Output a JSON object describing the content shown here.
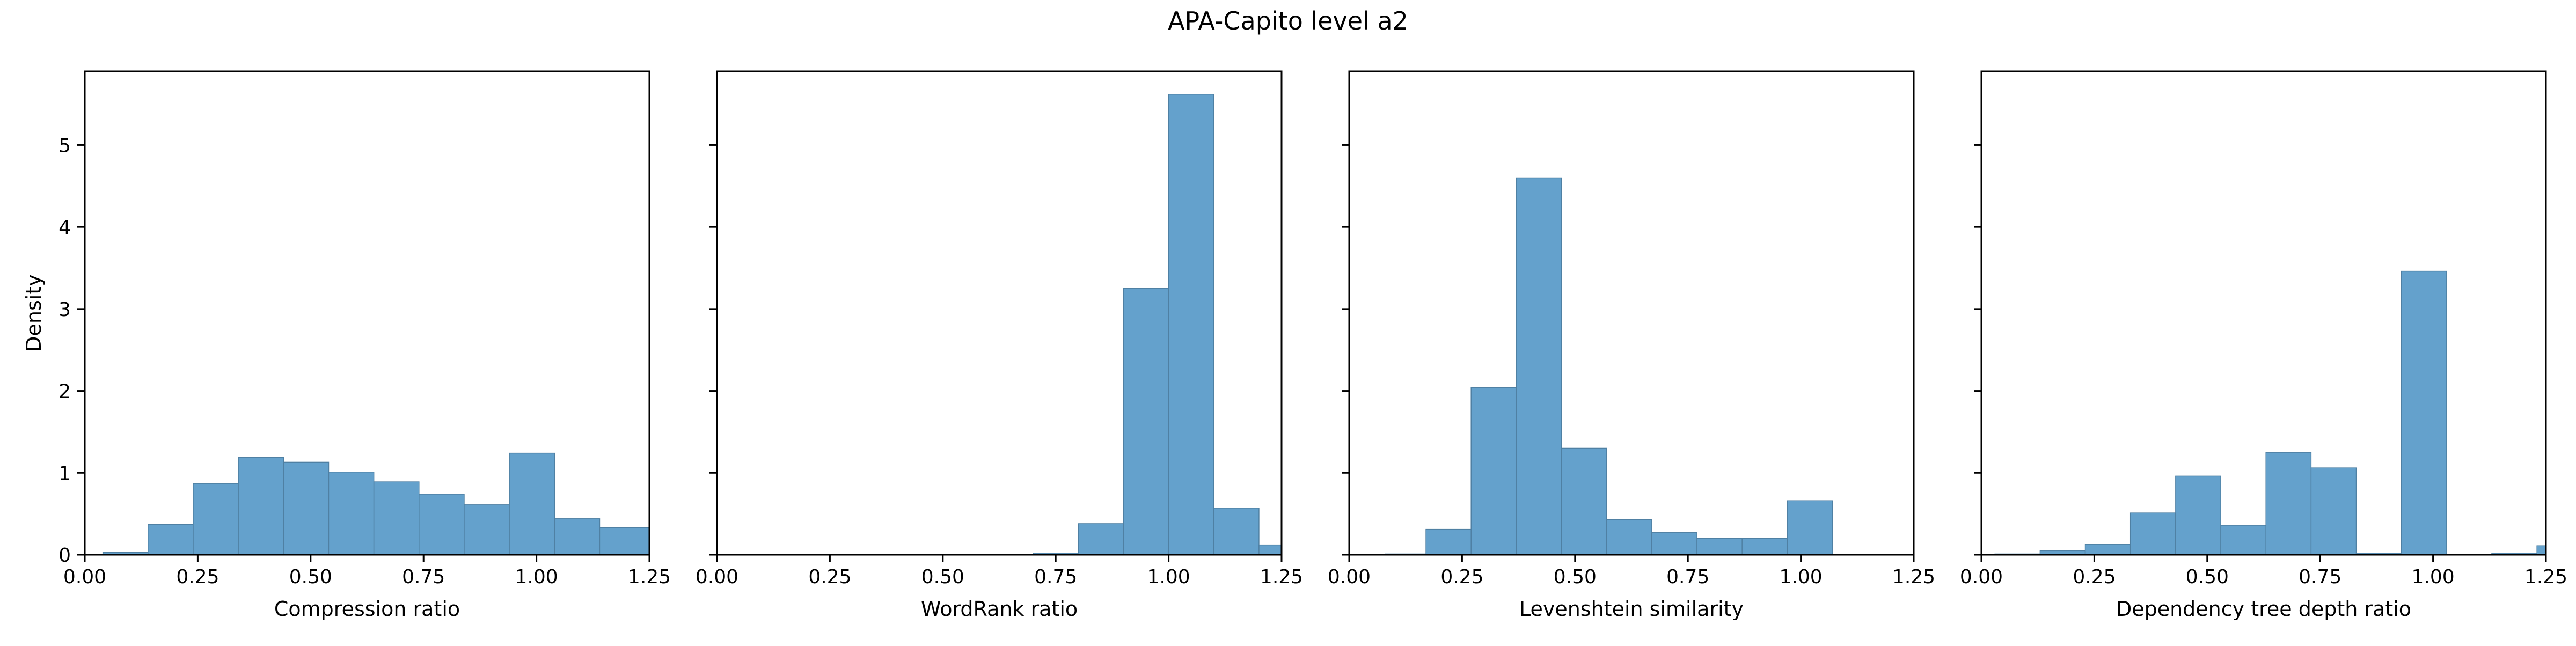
{
  "chart_data": {
    "title": "APA-Capito level a2",
    "ylabel": "Density",
    "shared_y": true,
    "ylim": [
      0,
      5.9
    ],
    "yticks": [
      0,
      1,
      2,
      3,
      4,
      5
    ],
    "bar_color": "#64a1cc",
    "bar_edge_color": "#4f80a3",
    "charts": [
      {
        "type": "histogram",
        "xlabel": "Compression ratio",
        "xlim": [
          0,
          1.25
        ],
        "xticks": [
          "0.00",
          "0.25",
          "0.50",
          "0.75",
          "1.00",
          "1.25"
        ],
        "bin_edges": [
          0.04,
          0.14,
          0.24,
          0.34,
          0.44,
          0.54,
          0.64,
          0.74,
          0.84,
          0.94,
          1.04,
          1.14,
          1.25
        ],
        "values": [
          0.03,
          0.37,
          0.87,
          1.19,
          1.13,
          1.01,
          0.89,
          0.74,
          0.61,
          1.24,
          0.44,
          0.33
        ]
      },
      {
        "type": "histogram",
        "xlabel": "WordRank ratio",
        "xlim": [
          0,
          1.25
        ],
        "xticks": [
          "0.00",
          "0.25",
          "0.50",
          "0.75",
          "1.00",
          "1.25"
        ],
        "bin_edges": [
          0.0,
          0.1,
          0.2,
          0.3,
          0.4,
          0.5,
          0.6,
          0.7,
          0.8,
          0.9,
          1.0,
          1.1,
          1.2,
          1.25
        ],
        "values": [
          0,
          0,
          0,
          0,
          0,
          0,
          0,
          0.02,
          0.38,
          3.25,
          5.62,
          0.57,
          0.12
        ]
      },
      {
        "type": "histogram",
        "xlabel": "Levenshtein similarity",
        "xlim": [
          0,
          1.25
        ],
        "xticks": [
          "0.00",
          "0.25",
          "0.50",
          "0.75",
          "1.00",
          "1.25"
        ],
        "bin_edges": [
          0.0,
          0.08,
          0.17,
          0.27,
          0.37,
          0.47,
          0.57,
          0.67,
          0.77,
          0.87,
          0.97,
          1.07
        ],
        "values": [
          0,
          0.01,
          0.31,
          2.04,
          4.6,
          1.3,
          0.43,
          0.27,
          0.2,
          0.2,
          0.66
        ]
      },
      {
        "type": "histogram",
        "xlabel": "Dependency tree depth ratio",
        "xlim": [
          0,
          1.25
        ],
        "xticks": [
          "0.00",
          "0.25",
          "0.50",
          "0.75",
          "1.00",
          "1.25"
        ],
        "bin_edges": [
          0.03,
          0.13,
          0.23,
          0.33,
          0.43,
          0.53,
          0.63,
          0.73,
          0.83,
          0.93,
          1.03,
          1.13,
          1.23,
          1.25
        ],
        "values": [
          0.01,
          0.05,
          0.13,
          0.51,
          0.96,
          0.36,
          1.25,
          1.06,
          0.02,
          3.46,
          0,
          0.02,
          0.11
        ]
      }
    ]
  }
}
